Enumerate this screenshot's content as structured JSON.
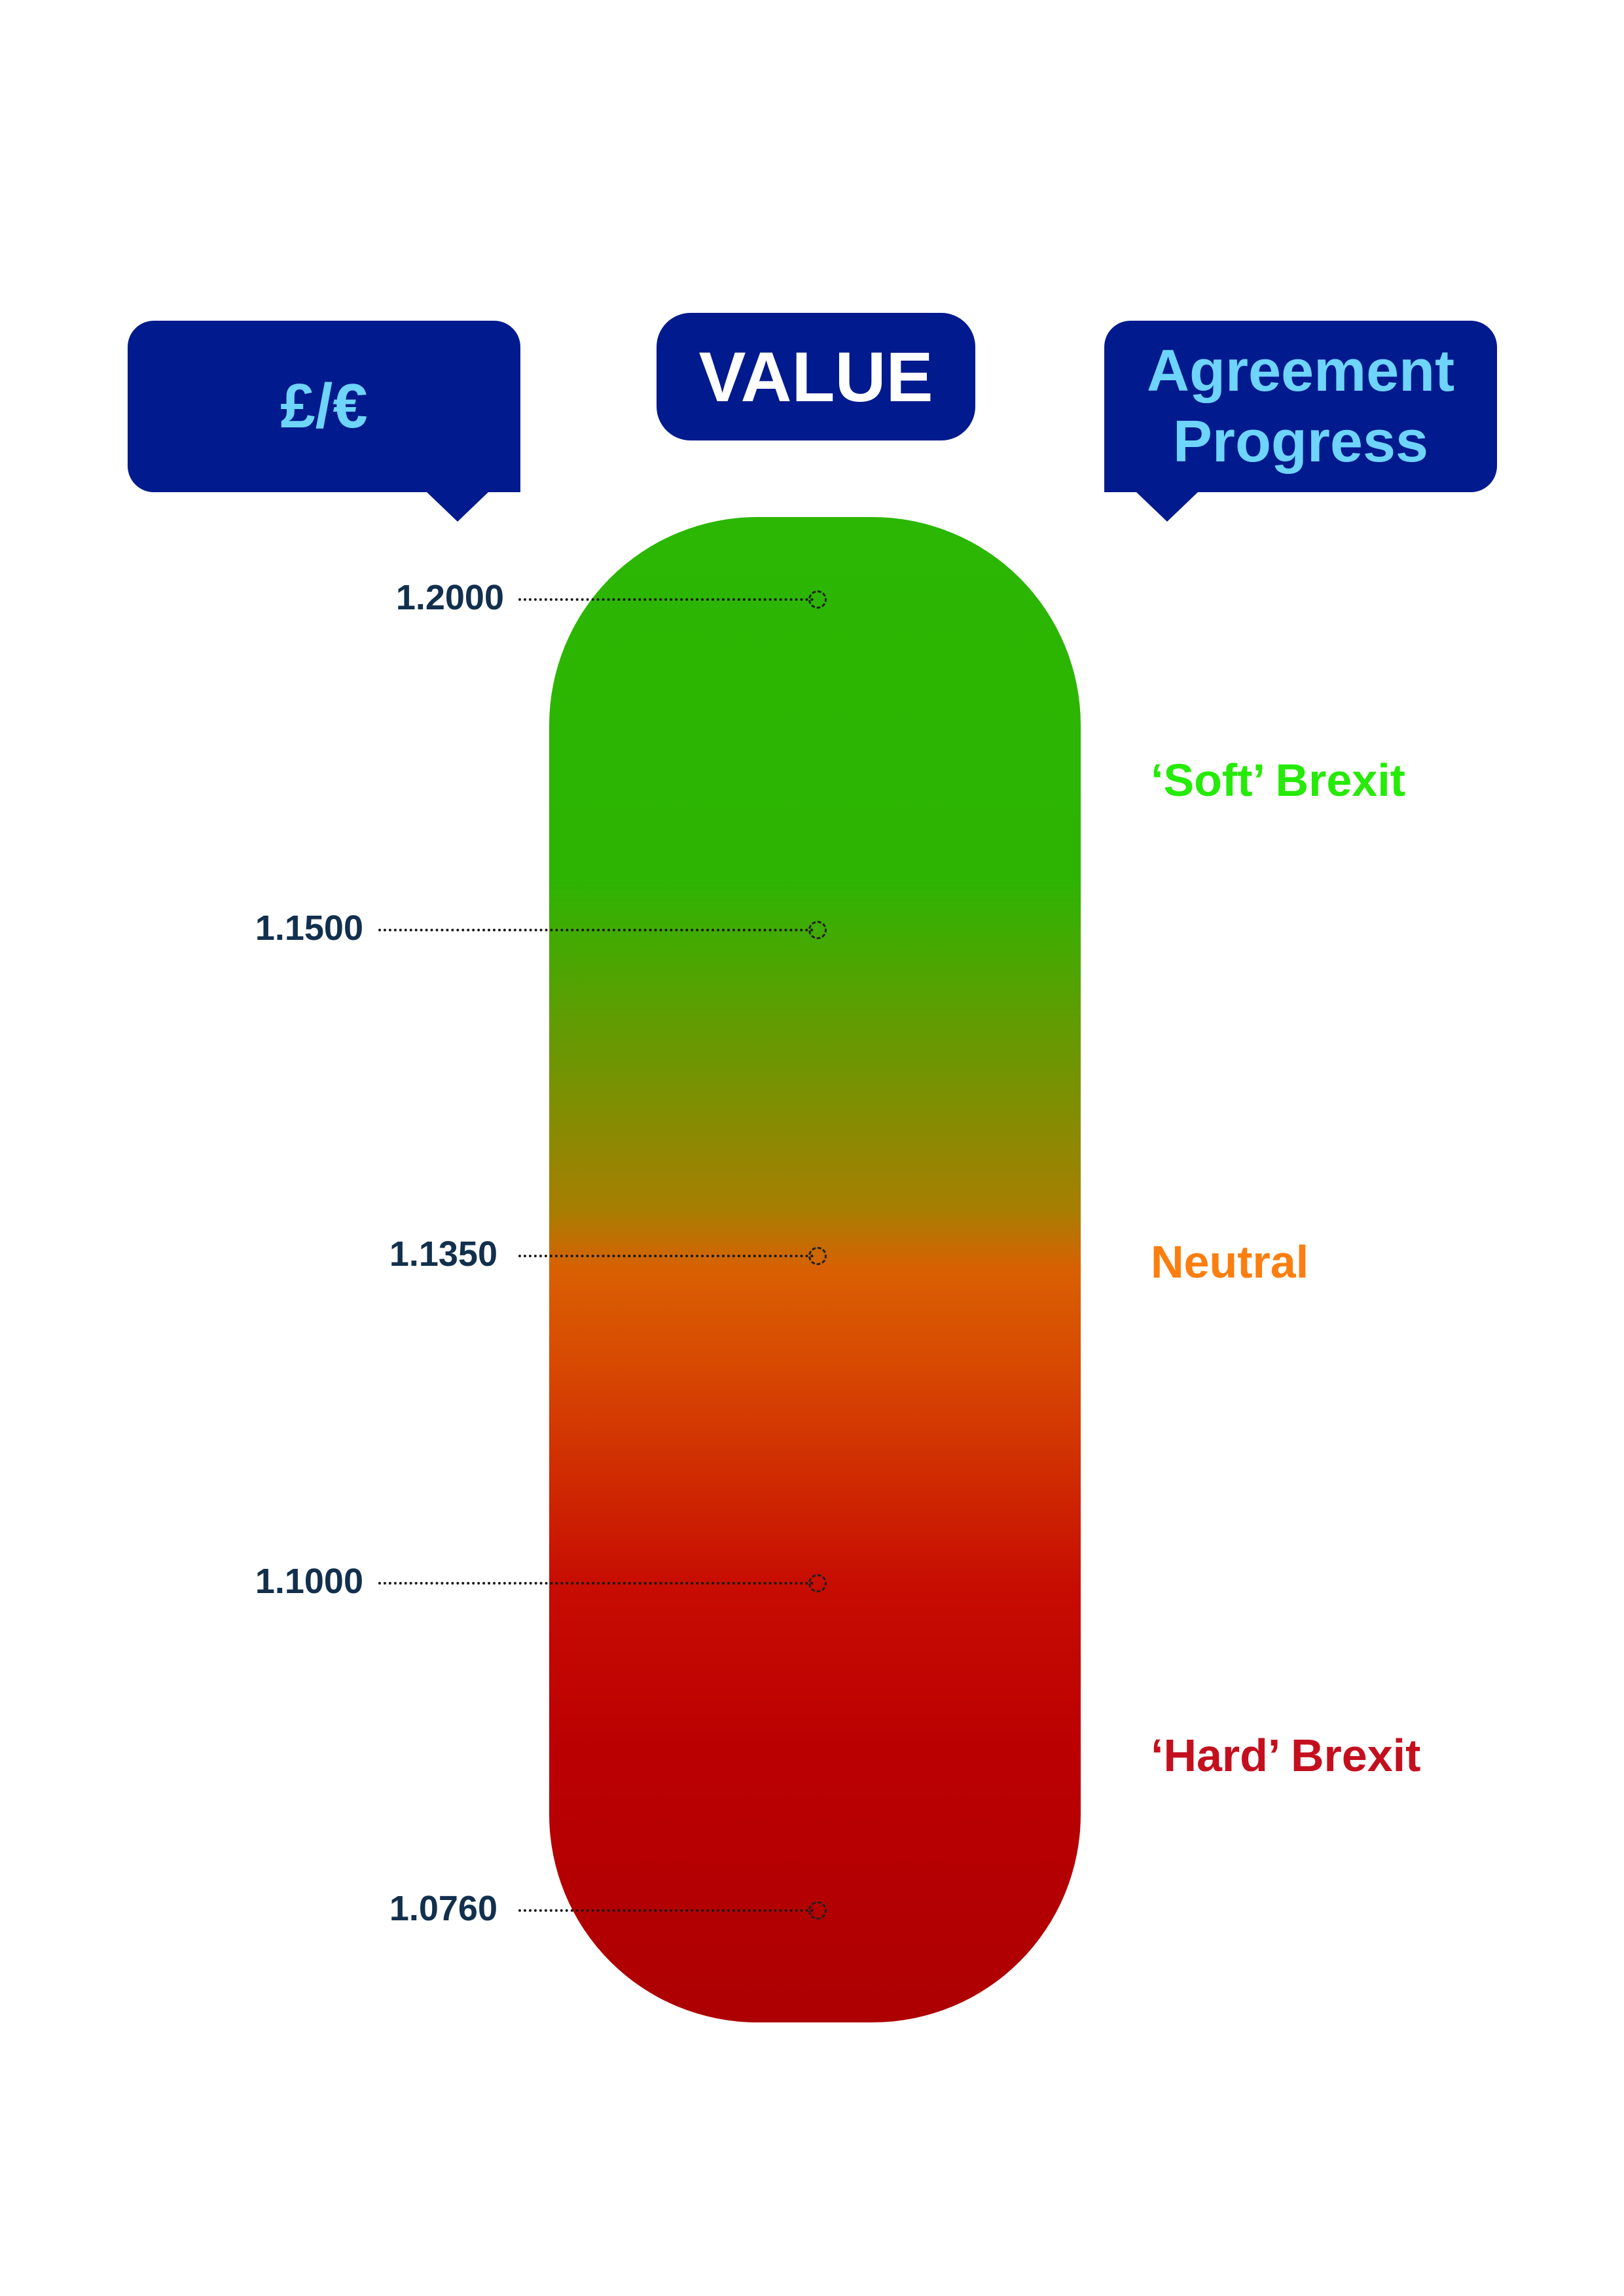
{
  "headers": {
    "currency": "£/€",
    "value": "VALUE",
    "progress": "Agreement Progress"
  },
  "scale": [
    {
      "label": "1.2000"
    },
    {
      "label": "1.1500"
    },
    {
      "label": "1.1350"
    },
    {
      "label": "1.1000"
    },
    {
      "label": "1.0760"
    }
  ],
  "zones": [
    {
      "label": "‘Soft’ Brexit",
      "color": "#26ea08"
    },
    {
      "label": "Neutral",
      "color": "#fb7e10"
    },
    {
      "label": "‘Hard’ Brexit",
      "color": "#c4101e"
    }
  ],
  "colors": {
    "bubble_bg": "#011a8d",
    "bubble_text": "#6ed4fb",
    "tick_text": "#12304d",
    "gauge_top": "#2bb703",
    "gauge_middle": "#d96002",
    "gauge_bottom": "#ad0002"
  }
}
